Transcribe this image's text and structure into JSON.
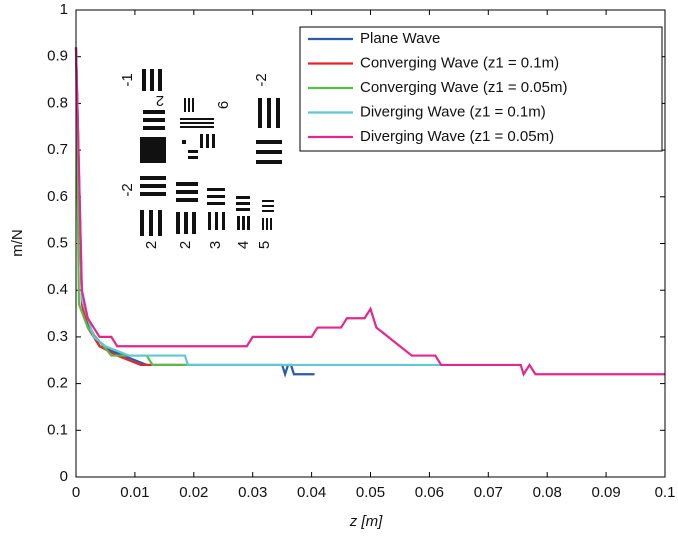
{
  "chart_data": {
    "type": "line",
    "xlabel": "z [m]",
    "ylabel": "m/N",
    "xlim": [
      0,
      0.1
    ],
    "ylim": [
      0,
      1
    ],
    "xticks": [
      0,
      0.01,
      0.02,
      0.03,
      0.04,
      0.05,
      0.06,
      0.07,
      0.08,
      0.09,
      0.1
    ],
    "yticks": [
      0,
      0.1,
      0.2,
      0.3,
      0.4,
      0.5,
      0.6,
      0.7,
      0.8,
      0.9,
      1
    ],
    "legend": "upper right",
    "inset_labels": [
      "-1",
      "2",
      "-2",
      "2",
      "-2",
      "2",
      "3",
      "4",
      "5",
      "6"
    ],
    "series": [
      {
        "name": "Plane Wave",
        "color": "#2b5aa6",
        "x": [
          0,
          0.001,
          0.002,
          0.004,
          0.008,
          0.012,
          0.035,
          0.0355,
          0.036,
          0.0365,
          0.037,
          0.0405
        ],
        "values": [
          0.92,
          0.38,
          0.33,
          0.28,
          0.26,
          0.24,
          0.24,
          0.22,
          0.24,
          0.24,
          0.22,
          0.22
        ]
      },
      {
        "name": "Converging Wave (z1 = 0.1m)",
        "color": "#e8242a",
        "x": [
          0,
          0.001,
          0.002,
          0.004,
          0.007,
          0.011,
          0.018
        ],
        "values": [
          0.92,
          0.37,
          0.32,
          0.28,
          0.26,
          0.24,
          0.24
        ]
      },
      {
        "name": "Converging Wave (z1 = 0.05m)",
        "color": "#5cba47",
        "x": [
          0,
          0.0005,
          0.002,
          0.004,
          0.006,
          0.012,
          0.013,
          0.019
        ],
        "values": [
          0.92,
          0.37,
          0.32,
          0.29,
          0.26,
          0.26,
          0.24,
          0.24
        ]
      },
      {
        "name": "Diverging Wave (z1 = 0.1m)",
        "color": "#5ec8d4",
        "x": [
          0,
          0.001,
          0.003,
          0.005,
          0.009,
          0.0185,
          0.019,
          0.062
        ],
        "values": [
          0.92,
          0.38,
          0.3,
          0.28,
          0.26,
          0.26,
          0.24,
          0.24
        ]
      },
      {
        "name": "Diverging Wave (z1 = 0.05m)",
        "color": "#e2288f",
        "x": [
          0,
          0.001,
          0.002,
          0.004,
          0.006,
          0.007,
          0.029,
          0.03,
          0.04,
          0.041,
          0.045,
          0.046,
          0.049,
          0.05,
          0.051,
          0.053,
          0.055,
          0.057,
          0.061,
          0.062,
          0.0755,
          0.076,
          0.077,
          0.078,
          0.1
        ],
        "values": [
          0.92,
          0.4,
          0.34,
          0.3,
          0.3,
          0.28,
          0.28,
          0.3,
          0.3,
          0.32,
          0.32,
          0.34,
          0.34,
          0.36,
          0.32,
          0.3,
          0.28,
          0.26,
          0.26,
          0.24,
          0.24,
          0.22,
          0.24,
          0.22,
          0.22
        ]
      }
    ]
  }
}
